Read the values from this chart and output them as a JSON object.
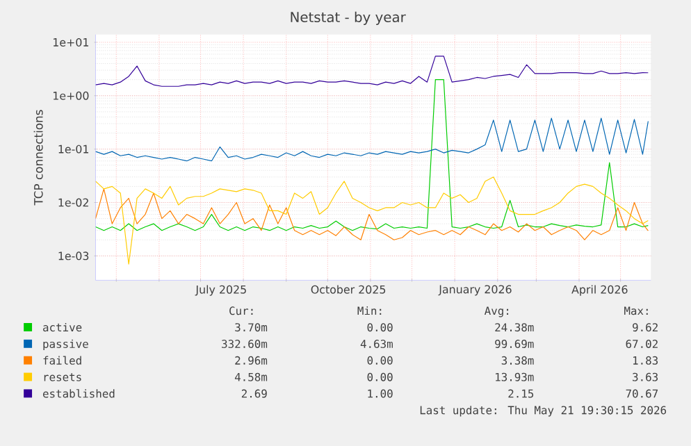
{
  "chart_data": {
    "type": "line",
    "title": "Netstat - by year",
    "ylabel": "TCP connections",
    "log": true,
    "grid": true,
    "legend": "bottom left",
    "xlim": [
      "2025-04-16",
      "2026-05-23"
    ],
    "ylim": [
      0.00035,
      14
    ],
    "xticks": [
      {
        "value": "2025-05-01",
        "label": null
      },
      {
        "value": "2025-06-01",
        "label": null
      },
      {
        "value": "2025-07-01",
        "label": null
      },
      {
        "value": "2025-07-16",
        "label": "July 2025"
      },
      {
        "value": "2025-08-01",
        "label": null
      },
      {
        "value": "2025-09-01",
        "label": null
      },
      {
        "value": "2025-10-01",
        "label": null
      },
      {
        "value": "2025-10-16",
        "label": "October 2025"
      },
      {
        "value": "2025-11-01",
        "label": null
      },
      {
        "value": "2025-12-01",
        "label": null
      },
      {
        "value": "2026-01-01",
        "label": null
      },
      {
        "value": "2026-01-16",
        "label": "January 2026"
      },
      {
        "value": "2026-02-01",
        "label": null
      },
      {
        "value": "2026-03-01",
        "label": null
      },
      {
        "value": "2026-04-01",
        "label": null
      },
      {
        "value": "2026-04-16",
        "label": "April 2026"
      },
      {
        "value": "2026-05-01",
        "label": null
      }
    ],
    "yticks": [
      {
        "value": 0.001,
        "label": "1e-03"
      },
      {
        "value": 0.01,
        "label": "1e-02"
      },
      {
        "value": 0.1,
        "label": "1e-01"
      },
      {
        "value": 1,
        "label": "1e+00"
      },
      {
        "value": 10,
        "label": "1e+01"
      }
    ],
    "x": [
      "2025-04-16",
      "2025-04-22",
      "2025-04-28",
      "2025-05-04",
      "2025-05-10",
      "2025-05-16",
      "2025-05-22",
      "2025-05-28",
      "2025-06-03",
      "2025-06-09",
      "2025-06-15",
      "2025-06-21",
      "2025-06-27",
      "2025-07-03",
      "2025-07-09",
      "2025-07-15",
      "2025-07-21",
      "2025-07-27",
      "2025-08-02",
      "2025-08-08",
      "2025-08-14",
      "2025-08-20",
      "2025-08-26",
      "2025-09-01",
      "2025-09-07",
      "2025-09-13",
      "2025-09-19",
      "2025-09-25",
      "2025-10-01",
      "2025-10-07",
      "2025-10-13",
      "2025-10-19",
      "2025-10-25",
      "2025-10-31",
      "2025-11-06",
      "2025-11-12",
      "2025-11-18",
      "2025-11-24",
      "2025-11-30",
      "2025-12-06",
      "2025-12-12",
      "2025-12-18",
      "2025-12-24",
      "2025-12-30",
      "2026-01-05",
      "2026-01-11",
      "2026-01-17",
      "2026-01-23",
      "2026-01-29",
      "2026-02-04",
      "2026-02-10",
      "2026-02-16",
      "2026-02-22",
      "2026-02-28",
      "2026-03-06",
      "2026-03-12",
      "2026-03-18",
      "2026-03-24",
      "2026-03-30",
      "2026-04-05",
      "2026-04-11",
      "2026-04-17",
      "2026-04-23",
      "2026-04-29",
      "2026-05-05",
      "2026-05-11",
      "2026-05-17",
      "2026-05-21"
    ],
    "series": [
      {
        "name": "active",
        "color": "#00cc00",
        "values": [
          0.0035,
          0.003,
          0.0035,
          0.003,
          0.004,
          0.003,
          0.0035,
          0.004,
          0.003,
          0.0035,
          0.004,
          0.0035,
          0.003,
          0.0035,
          0.006,
          0.0035,
          0.003,
          0.0035,
          0.003,
          0.0035,
          0.0033,
          0.003,
          0.0035,
          0.003,
          0.0035,
          0.0033,
          0.0037,
          0.0033,
          0.0035,
          0.0045,
          0.0035,
          0.003,
          0.0035,
          0.0033,
          0.0032,
          0.004,
          0.0033,
          0.0035,
          0.0033,
          0.0035,
          0.0033,
          2,
          2,
          0.0035,
          0.0033,
          0.0035,
          0.004,
          0.0035,
          0.0033,
          0.0035,
          0.011,
          0.0035,
          0.0038,
          0.0035,
          0.0035,
          0.004,
          0.0037,
          0.0035,
          0.0038,
          0.0036,
          0.0035,
          0.0038,
          0.056,
          0.0035,
          0.0035,
          0.004,
          0.0035,
          0.0037
        ]
      },
      {
        "name": "passive",
        "color": "#0066b3",
        "values": [
          0.09,
          0.08,
          0.09,
          0.075,
          0.08,
          0.07,
          0.075,
          0.07,
          0.065,
          0.07,
          0.065,
          0.06,
          0.07,
          0.065,
          0.06,
          0.11,
          0.07,
          0.075,
          0.065,
          0.07,
          0.08,
          0.075,
          0.07,
          0.085,
          0.075,
          0.09,
          0.075,
          0.07,
          0.08,
          0.075,
          0.085,
          0.08,
          0.075,
          0.085,
          0.08,
          0.09,
          0.085,
          0.08,
          0.09,
          0.085,
          0.09,
          0.1,
          0.085,
          0.095,
          0.09,
          0.085,
          0.1,
          0.12,
          0.35,
          0.09,
          0.35,
          0.09,
          0.1,
          0.35,
          0.09,
          0.38,
          0.1,
          0.35,
          0.09,
          0.35,
          0.09,
          0.38,
          0.08,
          0.35,
          0.085,
          0.36,
          0.08,
          0.3326
        ]
      },
      {
        "name": "failed",
        "color": "#ff8000",
        "values": [
          0.005,
          0.018,
          0.004,
          0.008,
          0.012,
          0.004,
          0.006,
          0.015,
          0.005,
          0.007,
          0.004,
          0.006,
          0.005,
          0.004,
          0.008,
          0.004,
          0.006,
          0.01,
          0.004,
          0.005,
          0.003,
          0.009,
          0.004,
          0.008,
          0.003,
          0.0025,
          0.003,
          0.0025,
          0.003,
          0.0024,
          0.0035,
          0.0025,
          0.002,
          0.006,
          0.003,
          0.0025,
          0.002,
          0.0022,
          0.003,
          0.0025,
          0.0028,
          0.003,
          0.0025,
          0.003,
          0.0025,
          0.0035,
          0.003,
          0.0025,
          0.004,
          0.003,
          0.0035,
          0.0028,
          0.004,
          0.003,
          0.0035,
          0.0025,
          0.003,
          0.0035,
          0.003,
          0.002,
          0.003,
          0.0025,
          0.003,
          0.008,
          0.003,
          0.01,
          0.004,
          0.00296
        ]
      },
      {
        "name": "resets",
        "color": "#ffcc00",
        "values": [
          0.025,
          0.018,
          0.02,
          0.015,
          0.0007,
          0.012,
          0.018,
          0.015,
          0.012,
          0.02,
          0.009,
          0.012,
          0.013,
          0.013,
          0.015,
          0.018,
          0.017,
          0.016,
          0.018,
          0.017,
          0.015,
          0.007,
          0.007,
          0.006,
          0.015,
          0.012,
          0.016,
          0.006,
          0.008,
          0.015,
          0.025,
          0.012,
          0.01,
          0.008,
          0.007,
          0.008,
          0.008,
          0.01,
          0.009,
          0.01,
          0.008,
          0.008,
          0.015,
          0.012,
          0.014,
          0.01,
          0.012,
          0.025,
          0.03,
          0.015,
          0.007,
          0.006,
          0.006,
          0.006,
          0.007,
          0.008,
          0.01,
          0.015,
          0.02,
          0.022,
          0.02,
          0.015,
          0.012,
          0.009,
          0.007,
          0.005,
          0.004,
          0.00458
        ]
      },
      {
        "name": "established",
        "color": "#330099",
        "values": [
          1.6,
          1.7,
          1.6,
          1.8,
          2.3,
          3.6,
          1.9,
          1.6,
          1.5,
          1.5,
          1.5,
          1.6,
          1.6,
          1.7,
          1.6,
          1.8,
          1.7,
          1.9,
          1.7,
          1.8,
          1.8,
          1.7,
          1.9,
          1.7,
          1.8,
          1.8,
          1.7,
          1.9,
          1.8,
          1.8,
          1.9,
          1.8,
          1.7,
          1.7,
          1.6,
          1.8,
          1.7,
          1.9,
          1.7,
          2.3,
          1.8,
          5.5,
          5.5,
          1.8,
          1.9,
          2.0,
          2.2,
          2.1,
          2.3,
          2.4,
          2.5,
          2.2,
          3.8,
          2.6,
          2.6,
          2.6,
          2.7,
          2.7,
          2.7,
          2.6,
          2.6,
          2.9,
          2.6,
          2.6,
          2.7,
          2.6,
          2.7,
          2.69
        ]
      }
    ],
    "annotations": [
      "Cur:",
      "Min:",
      "Avg:",
      "Max:",
      "3.70m",
      "0.00",
      "24.38m",
      "9.62",
      "332.60m",
      "4.63m",
      "99.69m",
      "67.02",
      "2.96m",
      "0.00",
      "3.38m",
      "1.83",
      "4.58m",
      "0.00",
      "13.93m",
      "3.63",
      "2.69",
      "1.00",
      "2.15",
      "70.67",
      "Last update: Thu May 21 19:30:15 2026"
    ]
  }
}
